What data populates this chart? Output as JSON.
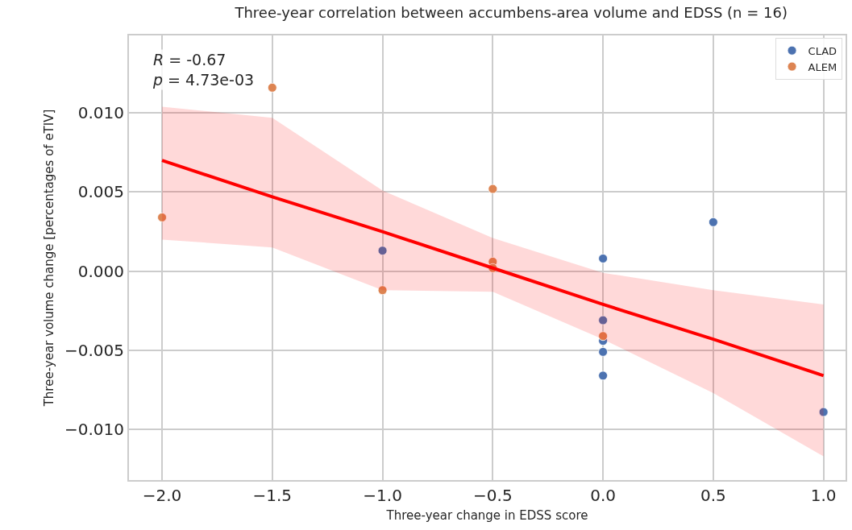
{
  "chart_data": {
    "type": "scatter",
    "title": "Three-year correlation between accumbens-area volume and EDSS (n = 16)",
    "xlabel": "Three-year change in EDSS score",
    "ylabel": "Three-year volume change [percentages of eTIV]",
    "annotations": [
      "R = -0.67\np = 4.73e-03"
    ],
    "series": [
      {
        "name": "CLAD",
        "color": "#4c72b0",
        "marker": "circle",
        "x": [
          -1.0,
          0.0,
          0.0,
          0.0,
          0.0,
          0.0,
          0.5,
          1.0
        ],
        "values": [
          0.0013,
          0.0008,
          -0.0031,
          -0.0044,
          -0.0051,
          -0.0066,
          0.0031,
          -0.0089
        ]
      },
      {
        "name": "ALEM",
        "color": "#dd8452",
        "marker": "circle",
        "x": [
          -2.0,
          -1.5,
          -1.0,
          -0.5,
          -0.5,
          -0.5,
          0.0
        ],
        "values": [
          0.0034,
          0.0116,
          -0.0012,
          0.0052,
          0.0006,
          0.0002,
          -0.0041
        ]
      },
      {
        "type": "line",
        "color": "#ff0000",
        "x": [
          -2.0,
          -1.5,
          -1.0,
          -0.5,
          0.0,
          0.5,
          1.0
        ],
        "values": [
          0.007,
          0.0047,
          0.0025,
          0.0002,
          -0.0021,
          -0.0043,
          -0.0066
        ],
        "lower": [
          0.002,
          0.0015,
          -0.0012,
          -0.0013,
          -0.0043,
          -0.0077,
          -0.0117
        ],
        "upper": [
          0.0104,
          0.0097,
          0.0051,
          0.0021,
          -0.0001,
          -0.0012,
          -0.0021
        ]
      }
    ],
    "xlim": [
      -2.15,
      1.1
    ],
    "ylim": [
      -0.0132,
      0.0149
    ],
    "xticks": [
      {
        "value": -2.0,
        "label": "−2.0"
      },
      {
        "value": -1.5,
        "label": "−1.5"
      },
      {
        "value": -1.0,
        "label": "−1.0"
      },
      {
        "value": -0.5,
        "label": "−0.5"
      },
      {
        "value": 0.0,
        "label": "0.0"
      },
      {
        "value": 0.5,
        "label": "0.5"
      },
      {
        "value": 1.0,
        "label": "1.0"
      }
    ],
    "yticks": [
      {
        "value": -0.01,
        "label": "−0.010"
      },
      {
        "value": -0.005,
        "label": "−0.005"
      },
      {
        "value": 0.0,
        "label": "0.000"
      },
      {
        "value": 0.005,
        "label": "0.005"
      },
      {
        "value": 0.01,
        "label": "0.010"
      }
    ],
    "grid": true,
    "legend": "top right"
  }
}
